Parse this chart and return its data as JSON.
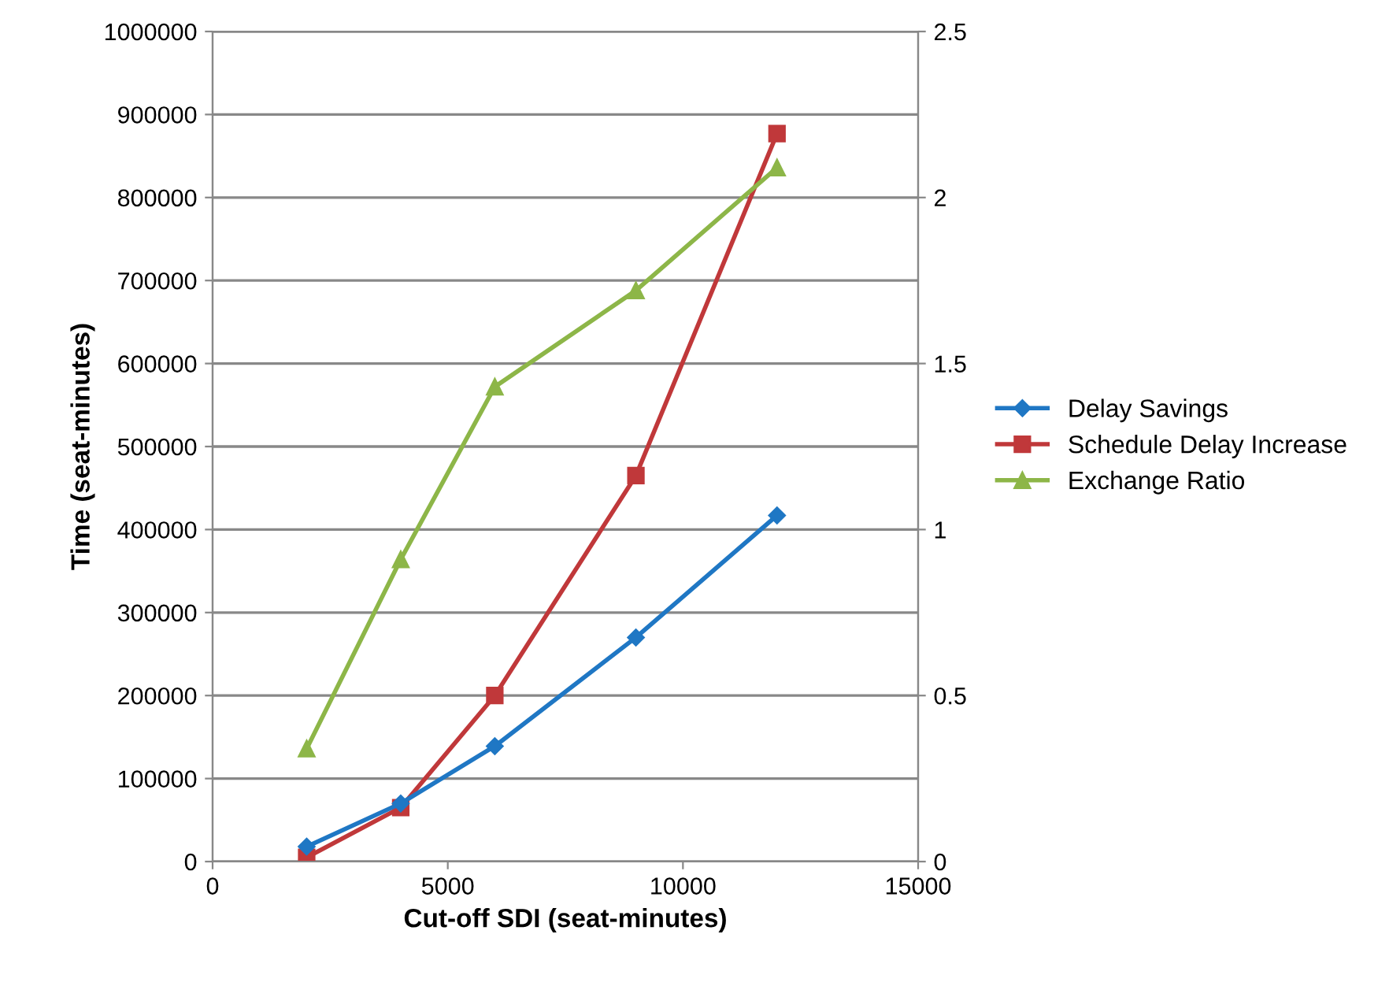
{
  "chart_data": {
    "type": "line",
    "xlabel": "Cut-off SDI (seat-minutes)",
    "ylabel": "Time (seat-minutes)",
    "xlim": [
      0,
      15000
    ],
    "xticks": [
      0,
      5000,
      10000,
      15000
    ],
    "ylim": [
      0,
      1000000
    ],
    "yticks": [
      0,
      100000,
      200000,
      300000,
      400000,
      500000,
      600000,
      700000,
      800000,
      900000,
      1000000
    ],
    "y2lim": [
      0,
      2.5
    ],
    "y2ticks": [
      0,
      0.5,
      1,
      1.5,
      2,
      2.5
    ],
    "grid": "y",
    "legend": "right",
    "series": [
      {
        "name": "Delay Savings",
        "color": "#1f77c4",
        "marker": "diamond",
        "x": [
          2000,
          4000,
          6000,
          9000,
          12000
        ],
        "values": [
          18000,
          70000,
          139000,
          270000,
          417000
        ]
      },
      {
        "name": "Schedule Delay Increase",
        "color": "#c0383a",
        "marker": "square",
        "x": [
          2000,
          4000,
          6000,
          9000,
          12000
        ],
        "values": [
          5000,
          65000,
          200000,
          465000,
          877000
        ]
      },
      {
        "name": "Exchange Ratio",
        "color": "#8db648",
        "marker": "triangle",
        "axis": "y2",
        "x": [
          2000,
          4000,
          6000,
          9000,
          12000
        ],
        "values": [
          0.34,
          0.91,
          1.43,
          1.72,
          2.09
        ]
      }
    ]
  }
}
